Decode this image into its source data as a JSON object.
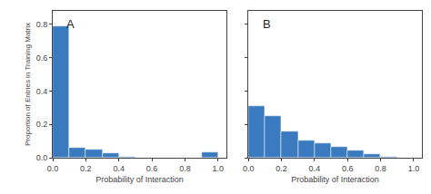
{
  "chart_data": [
    {
      "type": "histogram",
      "title": "A",
      "x_label": "Probability of Interaction",
      "y_label": "Proportion of Entries in Training Matrix",
      "bins": [
        0.0,
        0.1,
        0.2,
        0.3,
        0.4,
        0.5,
        0.6,
        0.7,
        0.8,
        0.9,
        1.0
      ],
      "values": [
        0.79,
        0.06,
        0.05,
        0.025,
        0.003,
        0.002,
        0.001,
        0.001,
        0.001,
        0.03
      ],
      "color": "#3a7abf",
      "xlim": [
        0.0,
        1.05
      ],
      "xticks": [
        {
          "value": 0.0,
          "label": "0.0"
        },
        0.2,
        0.4,
        0.6,
        0.8,
        {
          "value": 1.0,
          "label": "1.0"
        }
      ],
      "ylim": [
        0.0,
        0.88
      ],
      "yticks": [
        {
          "value": 0.0,
          "label": "0.0"
        },
        0.2,
        0.4,
        0.6,
        0.8
      ],
      "grid": false
    },
    {
      "type": "histogram",
      "title": "B",
      "x_label": "Probability of Interaction",
      "bins": [
        0.0,
        0.1,
        0.2,
        0.3,
        0.4,
        0.5,
        0.6,
        0.7,
        0.8,
        0.9,
        1.0
      ],
      "values": [
        0.31,
        0.25,
        0.16,
        0.105,
        0.085,
        0.065,
        0.045,
        0.02,
        0.008,
        0.002
      ],
      "color": "#3a7abf",
      "xlim": [
        0.0,
        1.05
      ],
      "xticks": [
        {
          "value": 0.0,
          "label": "0.0"
        },
        0.2,
        0.4,
        0.6,
        0.8,
        {
          "value": 1.0,
          "label": "1.0"
        }
      ],
      "ylim": [
        0.0,
        0.88
      ],
      "yticks": [
        0.0,
        0.2,
        0.4,
        0.6,
        0.8
      ],
      "tick_labels": "x",
      "grid": false
    }
  ]
}
